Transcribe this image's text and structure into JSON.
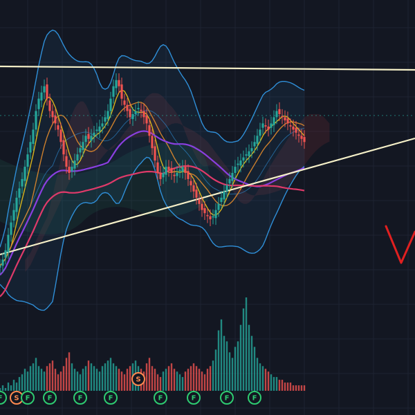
{
  "chart_data": {
    "type": "candlestick",
    "background": "#131722",
    "grid": true,
    "colors": {
      "up": "#26a69a",
      "down": "#ef5350",
      "trendline": "#f5f0c8",
      "bb": "#2f8fd8",
      "ma_fast": "#f0c419",
      "ma_mid": "#e08a2c",
      "ma_purple": "#8a3fe0",
      "ma_red": "#e03a6a",
      "cloud_green": "#1f5f4f",
      "cloud_red": "#6a2a34",
      "marker_f": "#2ecc71",
      "marker_s": "#ff8a50",
      "annotation": "#e02020",
      "price_line": "#26a69a"
    },
    "x": [
      0,
      1,
      2,
      3,
      4,
      5,
      6,
      7,
      8,
      9,
      10,
      11,
      12,
      13,
      14,
      15,
      16,
      17,
      18,
      19,
      20,
      21,
      22,
      23,
      24,
      25,
      26,
      27,
      28,
      29,
      30,
      31,
      32,
      33,
      34,
      35,
      36,
      37,
      38,
      39,
      40,
      41,
      42,
      43,
      44,
      45,
      46,
      47,
      48,
      49,
      50,
      51,
      52,
      53,
      54,
      55,
      56,
      57,
      58,
      59,
      60,
      61,
      62,
      63,
      64,
      65,
      66,
      67,
      68,
      69,
      70,
      71,
      72,
      73,
      74,
      75,
      76,
      77,
      78,
      79,
      80,
      81,
      82,
      83,
      84,
      85,
      86,
      87,
      88,
      89,
      90,
      91,
      92,
      93,
      94,
      95,
      96,
      97,
      98,
      99,
      100,
      101,
      102,
      103,
      104,
      105,
      106,
      107,
      108,
      109,
      110
    ],
    "close": [
      30,
      32,
      35,
      40,
      44,
      48,
      52,
      55,
      58,
      62,
      66,
      70,
      74,
      80,
      84,
      86,
      88,
      84,
      80,
      78,
      76,
      74,
      70,
      66,
      62,
      60,
      62,
      64,
      66,
      68,
      70,
      72,
      71,
      72,
      73,
      74,
      75,
      76,
      78,
      80,
      84,
      88,
      90,
      88,
      84,
      82,
      80,
      78,
      79,
      80,
      81,
      80,
      78,
      76,
      72,
      68,
      64,
      60,
      58,
      60,
      62,
      61,
      60,
      59,
      60,
      61,
      62,
      60,
      58,
      56,
      54,
      52,
      50,
      48,
      47,
      46,
      45,
      46,
      48,
      50,
      52,
      54,
      56,
      58,
      60,
      62,
      63,
      64,
      65,
      66,
      67,
      68,
      70,
      72,
      74,
      76,
      75,
      74,
      76,
      78,
      80,
      79,
      78,
      77,
      76,
      75,
      74,
      73,
      72,
      71,
      70
    ],
    "volume": [
      1,
      2,
      1,
      3,
      2,
      4,
      3,
      5,
      6,
      8,
      7,
      9,
      10,
      12,
      9,
      8,
      7,
      9,
      10,
      11,
      8,
      6,
      7,
      9,
      12,
      14,
      10,
      8,
      7,
      6,
      8,
      9,
      11,
      10,
      9,
      8,
      7,
      9,
      10,
      11,
      12,
      10,
      9,
      8,
      7,
      6,
      8,
      9,
      10,
      11,
      9,
      8,
      7,
      10,
      12,
      9,
      8,
      6,
      5,
      7,
      8,
      9,
      10,
      8,
      7,
      6,
      5,
      7,
      8,
      9,
      10,
      9,
      8,
      7,
      6,
      8,
      9,
      11,
      15,
      22,
      26,
      20,
      18,
      14,
      12,
      16,
      18,
      24,
      30,
      34,
      24,
      20,
      16,
      12,
      10,
      9,
      8,
      7,
      6,
      5,
      5,
      4,
      4,
      3,
      3,
      3,
      2,
      2,
      2,
      2,
      2
    ],
    "markers": [
      {
        "index": 0,
        "label": "F"
      },
      {
        "index": 6,
        "label": "S"
      },
      {
        "index": 10,
        "label": "F"
      },
      {
        "index": 18,
        "label": "F"
      },
      {
        "index": 29,
        "label": "F"
      },
      {
        "index": 40,
        "label": "F"
      },
      {
        "index": 50,
        "label": "S"
      },
      {
        "index": 58,
        "label": "F"
      },
      {
        "index": 70,
        "label": "F"
      },
      {
        "index": 82,
        "label": "F"
      },
      {
        "index": 92,
        "label": "F"
      }
    ],
    "annotation_text": "V"
  }
}
